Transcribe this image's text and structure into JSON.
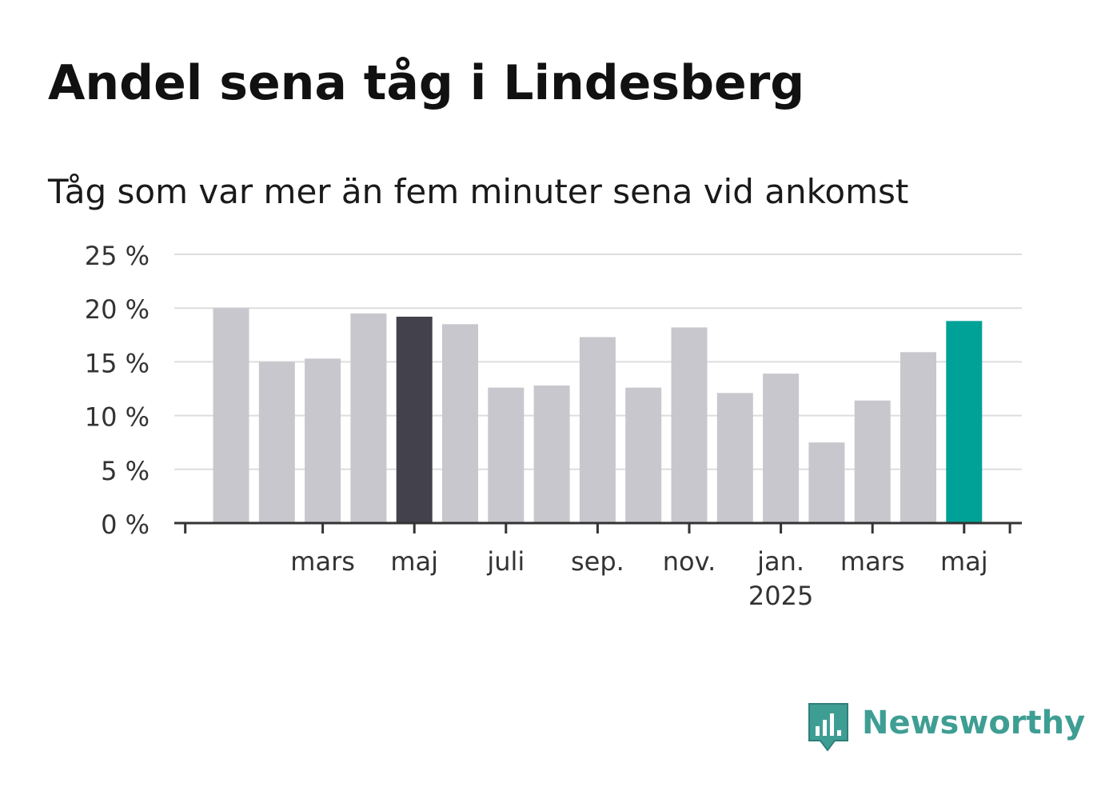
{
  "title": "Andel sena tåg i Lindesberg",
  "subtitle": "Tåg som var mer än fem minuter sena vid ankomst",
  "brand": {
    "name": "Newsworthy",
    "icon": "newsworthy-logo-icon"
  },
  "colors": {
    "bar_default": "#c8c7cd",
    "bar_highlight_dark": "#42414c",
    "bar_highlight_latest": "#00a297",
    "gridline": "#dddddd",
    "axis": "#333333",
    "brand": "#3f9e94"
  },
  "chart_data": {
    "type": "bar",
    "title": "Andel sena tåg i Lindesberg",
    "subtitle": "Tåg som var mer än fem minuter sena vid ankomst",
    "xlabel": "",
    "ylabel": "",
    "categories": [
      "2024-01",
      "2024-02",
      "2024-03",
      "2024-04",
      "2024-05",
      "2024-06",
      "2024-07",
      "2024-08",
      "2024-09",
      "2024-10",
      "2024-11",
      "2024-12",
      "2025-01",
      "2025-02",
      "2025-03",
      "2025-04",
      "2025-05"
    ],
    "values": [
      20.0,
      15.0,
      15.3,
      19.5,
      19.2,
      18.5,
      12.6,
      12.8,
      17.3,
      12.6,
      18.2,
      12.1,
      13.9,
      7.5,
      11.4,
      15.9,
      18.8
    ],
    "highlight": {
      "2024-05": "dark",
      "2025-05": "latest"
    },
    "ylim": [
      0,
      25
    ],
    "yticks": [
      0,
      5,
      10,
      15,
      20,
      25
    ],
    "ytick_labels": [
      "0 %",
      "5 %",
      "10 %",
      "15 %",
      "20 %",
      "25 %"
    ],
    "xticks": [
      {
        "at": "2024-03",
        "label": "mars",
        "sublabel": ""
      },
      {
        "at": "2024-05",
        "label": "maj",
        "sublabel": ""
      },
      {
        "at": "2024-07",
        "label": "juli",
        "sublabel": ""
      },
      {
        "at": "2024-09",
        "label": "sep.",
        "sublabel": ""
      },
      {
        "at": "2024-11",
        "label": "nov.",
        "sublabel": ""
      },
      {
        "at": "2025-01",
        "label": "jan.",
        "sublabel": "2025"
      },
      {
        "at": "2025-03",
        "label": "mars",
        "sublabel": ""
      },
      {
        "at": "2025-05",
        "label": "maj",
        "sublabel": ""
      }
    ],
    "grid": true,
    "legend": "none"
  }
}
